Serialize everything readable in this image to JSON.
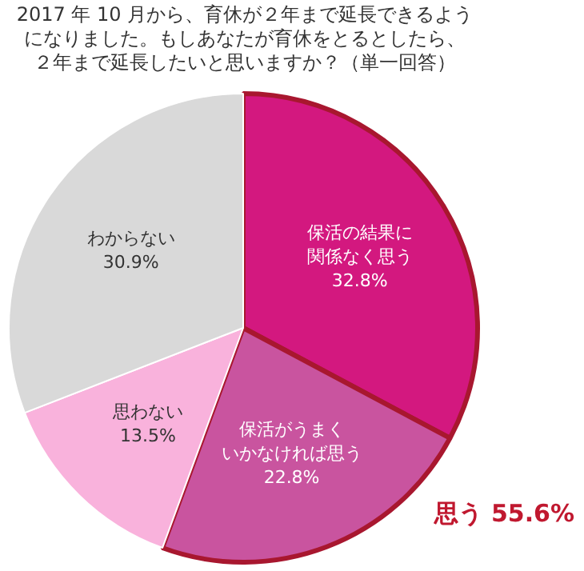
{
  "chart_data": {
    "type": "pie",
    "title": "2017 年 10 月から、育休が２年まで延長できるようになりました。もしあなたが育休をとるとしたら、２年まで延長したいと思いますか？（単一回答）",
    "categories": [
      "保活の結果に関係なく思う",
      "保活がうまくいかなければ思う",
      "思わない",
      "わからない"
    ],
    "values": [
      32.8,
      22.8,
      13.5,
      30.9
    ],
    "colors": [
      "#d3187f",
      "#c9549f",
      "#f9b2dc",
      "#d9d9d9"
    ],
    "value_labels": [
      "32.8%",
      "22.8%",
      "13.5%",
      "30.9%"
    ],
    "annotations": [
      "思う 55.6%"
    ]
  }
}
